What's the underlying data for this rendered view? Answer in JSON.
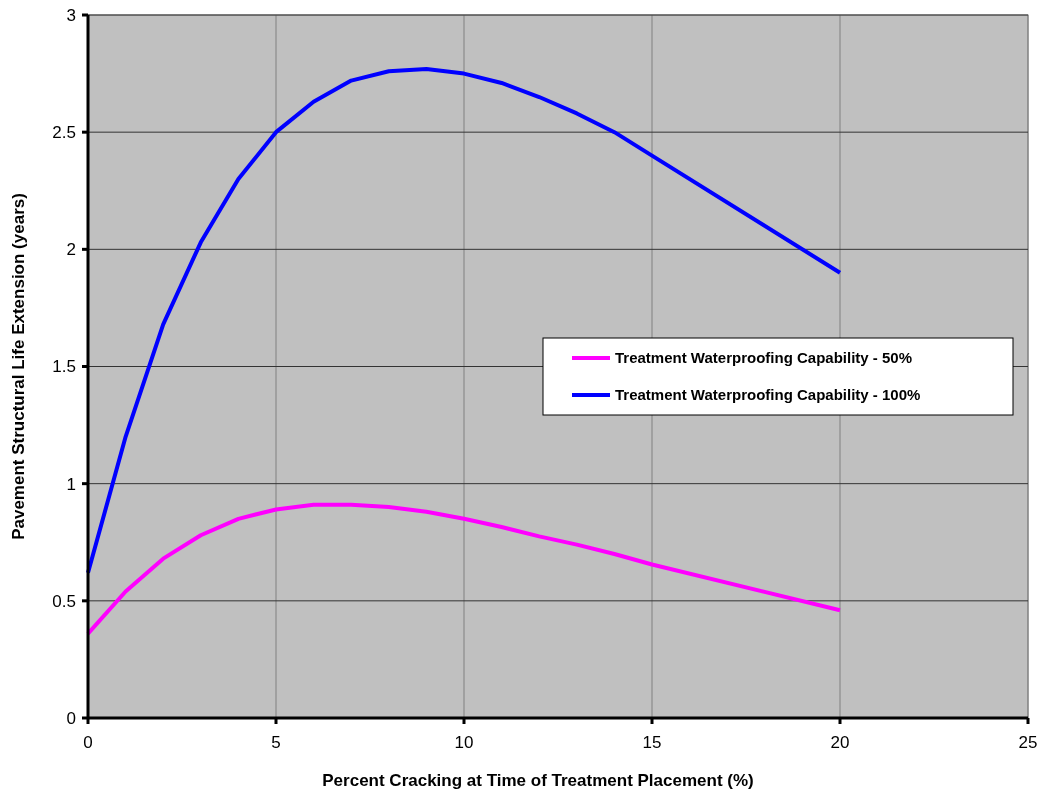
{
  "chart_data": {
    "type": "line",
    "xlabel": "Percent Cracking at Time of Treatment Placement (%)",
    "ylabel": "Pavement Structural Life Extension (years)",
    "x": [
      0,
      1,
      2,
      3,
      4,
      5,
      6,
      7,
      8,
      9,
      10,
      11,
      12,
      13,
      14,
      15,
      20
    ],
    "series": [
      {
        "name": "Treatment Waterproofing Capability - 50%",
        "color": "#ff00ff",
        "values": [
          0.36,
          0.54,
          0.68,
          0.78,
          0.85,
          0.89,
          0.91,
          0.91,
          0.9,
          0.88,
          0.85,
          0.815,
          0.775,
          0.74,
          0.7,
          0.655,
          0.46
        ]
      },
      {
        "name": "Treatment Waterproofing Capability - 100%",
        "color": "#0000ff",
        "values": [
          0.62,
          1.2,
          1.68,
          2.03,
          2.3,
          2.5,
          2.63,
          2.72,
          2.76,
          2.77,
          2.75,
          2.71,
          2.65,
          2.58,
          2.5,
          2.4,
          1.9
        ]
      }
    ],
    "xlim": [
      0,
      25
    ],
    "xticks": [
      0,
      5,
      10,
      15,
      20,
      25
    ],
    "ylim": [
      0,
      3
    ],
    "yticks": [
      0,
      0.5,
      1,
      1.5,
      2,
      2.5,
      3
    ],
    "grid": true,
    "legend": "right",
    "marker": "none",
    "line_style": "solid"
  }
}
